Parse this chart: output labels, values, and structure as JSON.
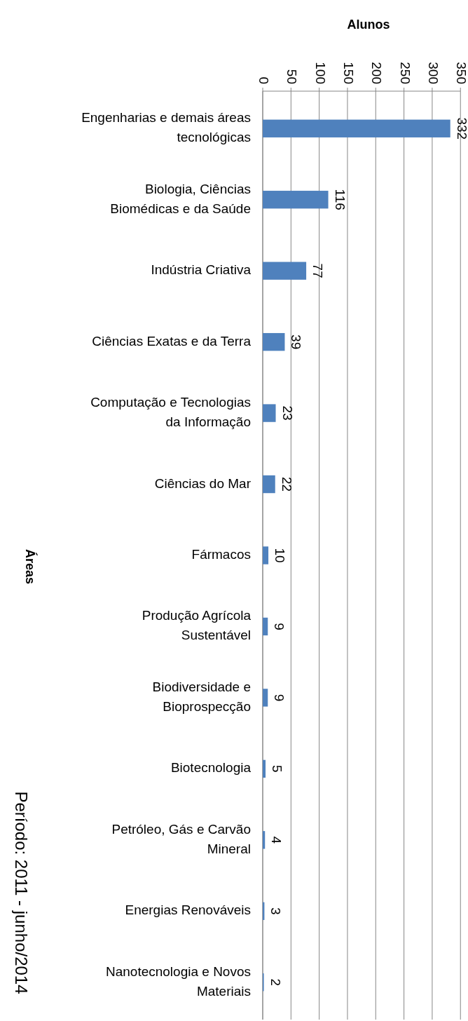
{
  "chart_data": {
    "type": "bar",
    "orientation": "horizontal",
    "title": "Período: 2011 - junho/2014",
    "xlabel": "Alunos",
    "ylabel": "Áreas",
    "categories": [
      "Engenharias e demais áreas tecnológicas",
      "Biologia, Ciências Biomédicas e da Saúde",
      "Indústria Criativa",
      "Ciências Exatas e da Terra",
      "Computação e Tecnologias da Informação",
      "Ciências do Mar",
      "Fármacos",
      "Produção Agrícola Sustentável",
      "Biodiversidade e Bioprospecção",
      "Biotecnologia",
      "Petróleo, Gás e Carvão Mineral",
      "Energias Renováveis",
      "Nanotecnologia e Novos Materiais"
    ],
    "values": [
      332,
      116,
      77,
      39,
      23,
      22,
      10,
      9,
      9,
      5,
      4,
      3,
      2
    ],
    "color": "#4f81bd",
    "xlim": [
      0,
      350
    ],
    "xticks": [
      0,
      50,
      100,
      150,
      200,
      250,
      300,
      350
    ],
    "grid": "x",
    "data_labels": true
  }
}
